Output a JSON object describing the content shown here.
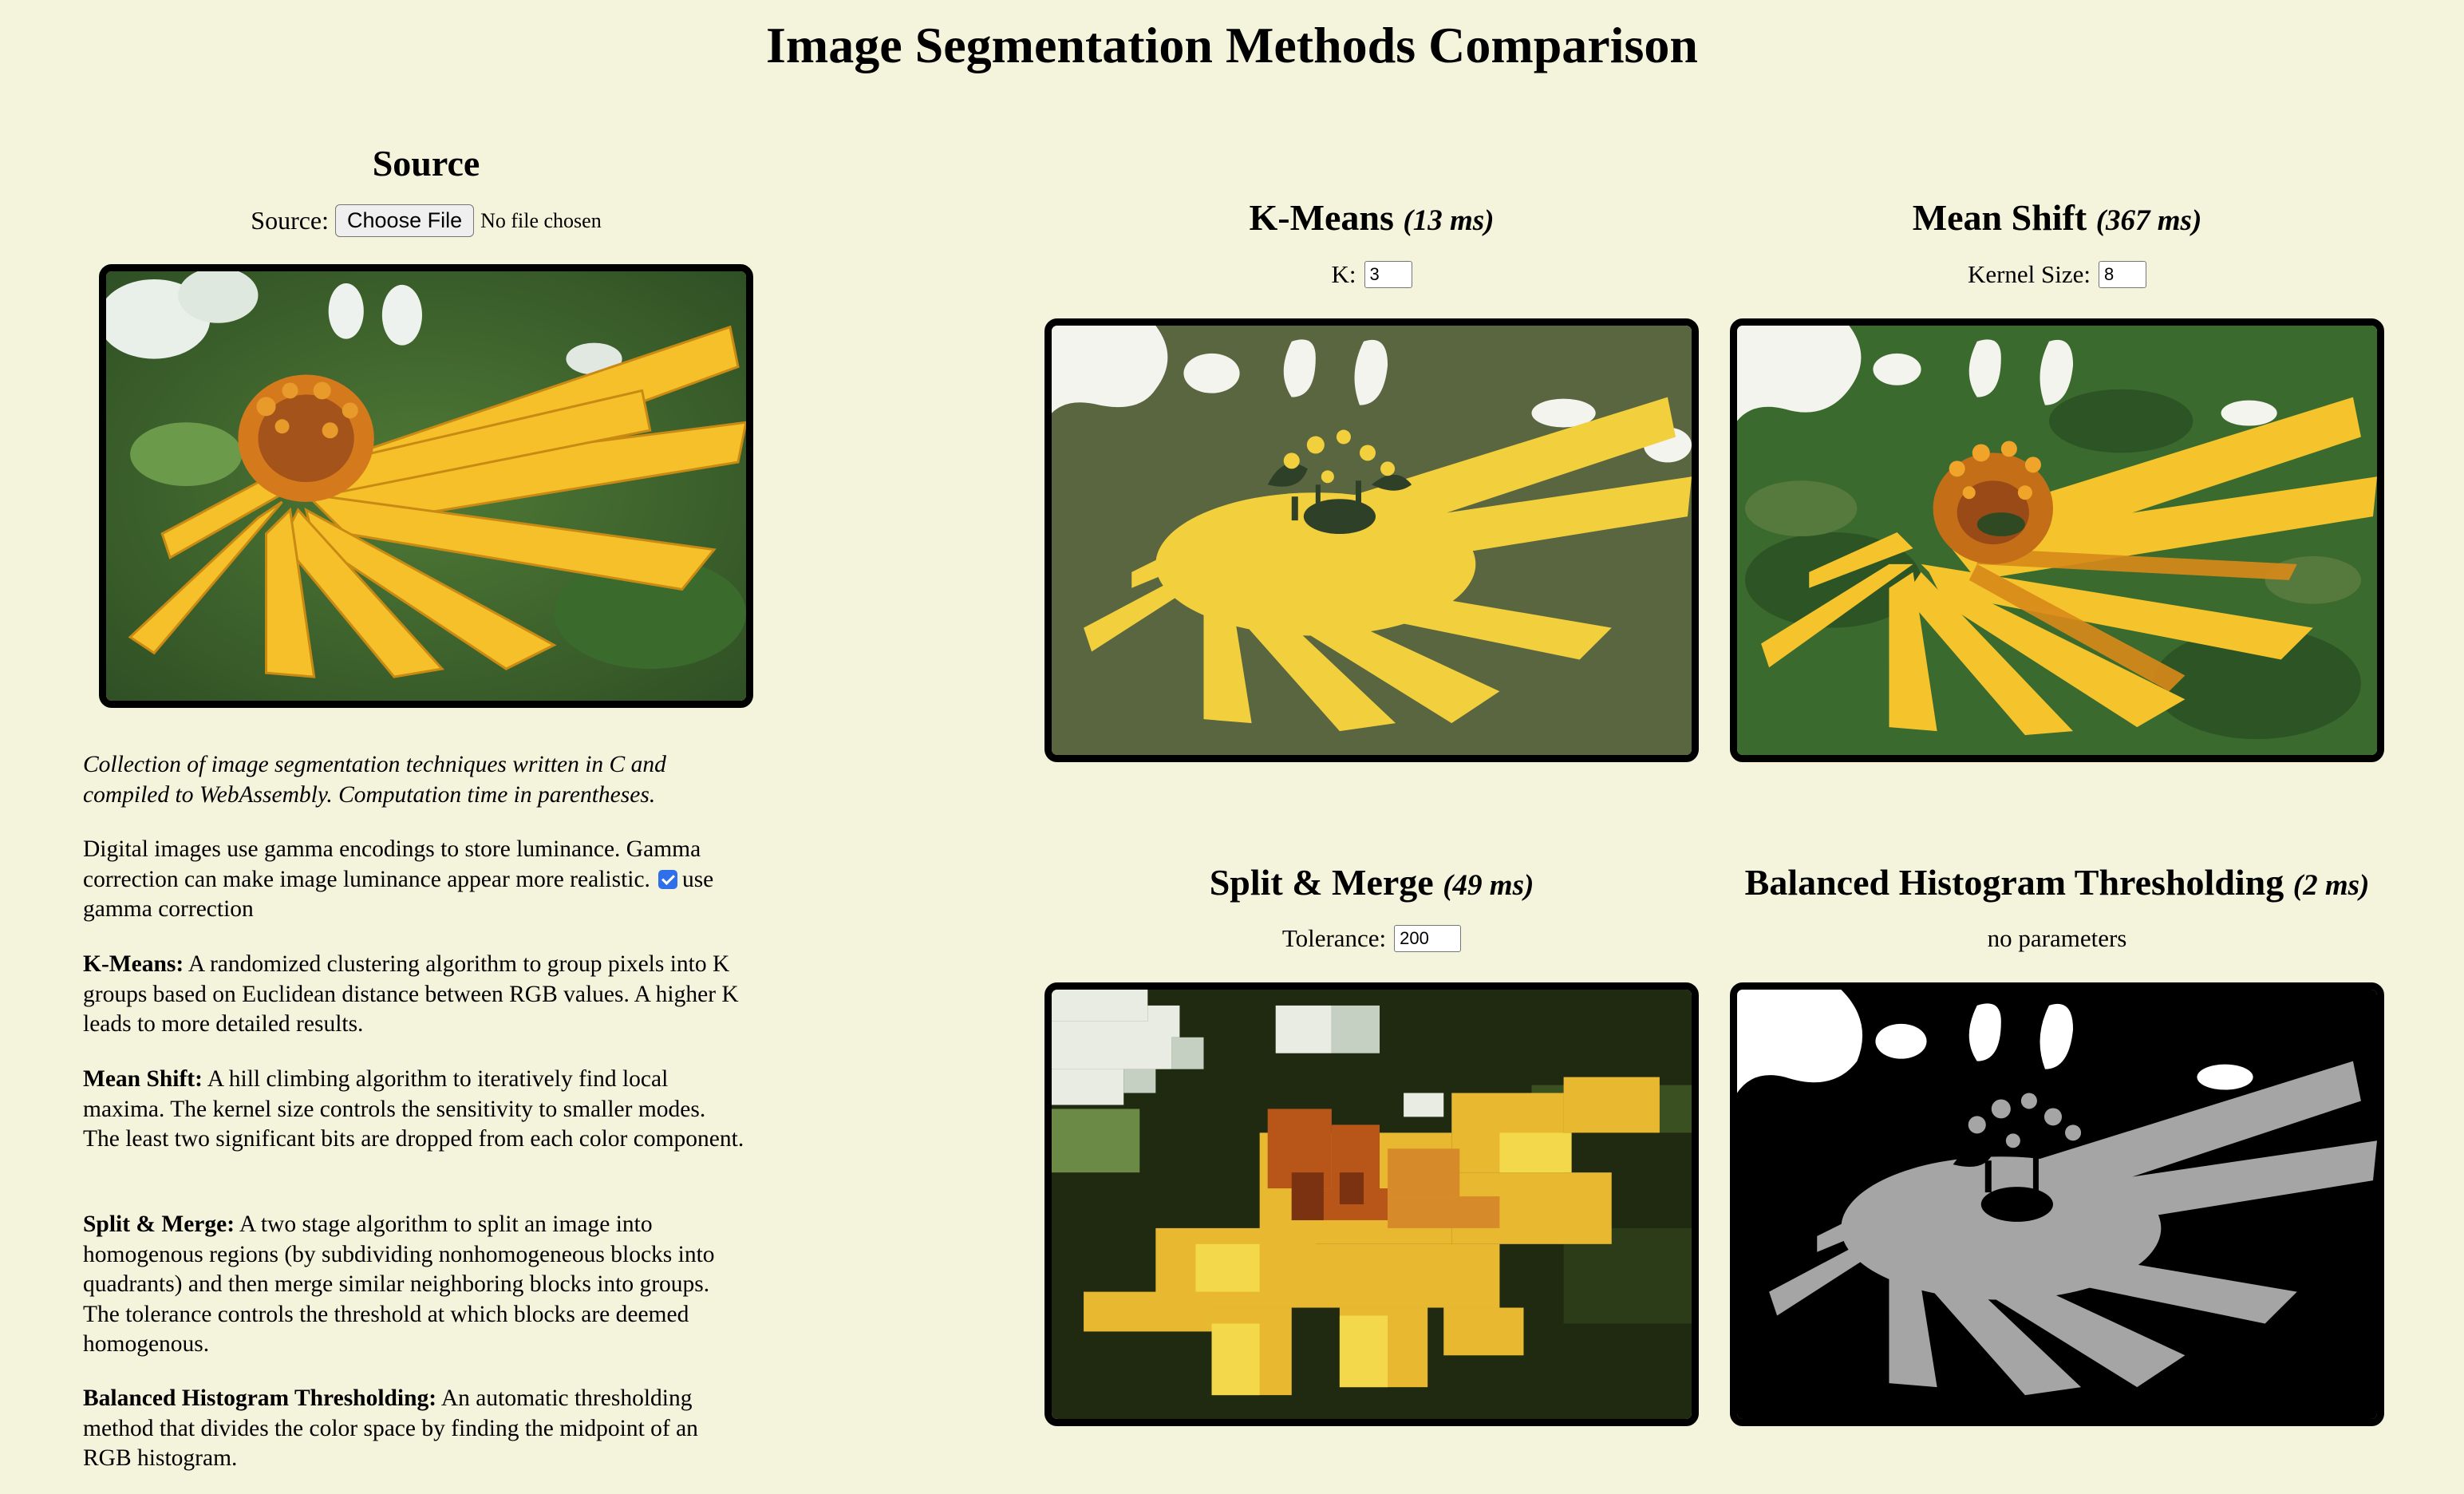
{
  "page": {
    "title": "Image Segmentation Methods Comparison"
  },
  "source": {
    "heading": "Source",
    "label": "Source:",
    "button": "Choose File",
    "file_status": "No file chosen"
  },
  "description": {
    "intro": "Collection of image segmentation techniques written in C and compiled to WebAssembly. Computation time in parentheses.",
    "gamma_text": "Digital images use gamma encodings to store luminance. Gamma correction can make image luminance appear more realistic.",
    "gamma_checkbox_label": "use gamma correction",
    "gamma_checked": true,
    "kmeans_term": "K-Means:",
    "kmeans_text": "A randomized clustering algorithm to group pixels into K groups based on Euclidean distance between RGB values. A higher K leads to more detailed results.",
    "meanshift_term": "Mean Shift:",
    "meanshift_text": "A hill climbing algorithm to iteratively find local maxima. The kernel size controls the sensitivity to smaller modes. The least two significant bits are dropped from each color component.",
    "splitmerge_term": "Split & Merge:",
    "splitmerge_text": "A two stage algorithm to split an image into homogenous regions (by subdividing nonhomogeneous blocks into quadrants) and then merge similar neighboring blocks into groups. The tolerance controls the threshold at which blocks are deemed homogenous.",
    "bht_term": "Balanced Histogram Thresholding:",
    "bht_text": "An automatic thresholding method that divides the color space by finding the midpoint of an RGB histogram."
  },
  "panels": {
    "kmeans": {
      "name": "K-Means",
      "time": "(13 ms)",
      "param_label": "K:",
      "param_value": "3"
    },
    "meanshift": {
      "name": "Mean Shift",
      "time": "(367 ms)",
      "param_label": "Kernel Size:",
      "param_value": "8"
    },
    "splitmerge": {
      "name": "Split & Merge",
      "time": "(49 ms)",
      "param_label": "Tolerance:",
      "param_value": "200"
    },
    "bht": {
      "name": "Balanced Histogram Thresholding",
      "time": "(2 ms)",
      "param_text": "no parameters"
    }
  },
  "colors": {
    "background": "#f4f4dd",
    "kmeans_bg": "#5a6640",
    "kmeans_fg": "#f2cf3c",
    "kmeans_center": "#2f4028",
    "meanshift_bg": "#3b6a2e",
    "meanshift_fg": "#f5c32c",
    "meanshift_center": "#c46f18",
    "splitmerge_bg": "#1f2a10",
    "splitmerge_fg": "#e8b830",
    "splitmerge_center": "#b8561a",
    "bht_bg": "#000000",
    "bht_fg": "#a5a5a5",
    "bht_white": "#ffffff"
  }
}
